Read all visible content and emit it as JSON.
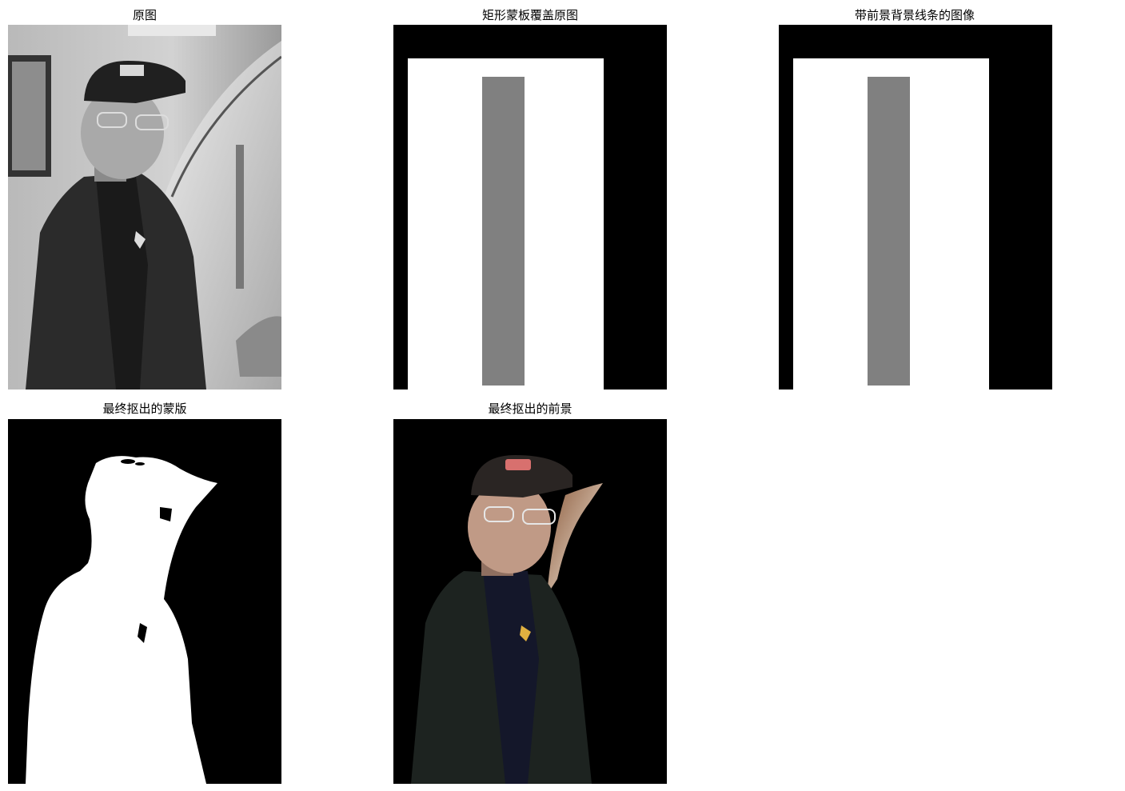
{
  "figure": {
    "panels": [
      {
        "id": "original",
        "title": "原图",
        "content": "grayscale photo of a young man wearing a dark cap and glasses, standing in a bedroom"
      },
      {
        "id": "rect-mask",
        "title": "矩形蒙板覆盖原图"
      },
      {
        "id": "lines-image",
        "title": "带前景背景线条的图像"
      },
      {
        "id": "final-mask",
        "title": "最终抠出的蒙版"
      },
      {
        "id": "final-foreground",
        "title": "最终抠出的前景"
      }
    ]
  },
  "colors": {
    "black": "#000000",
    "white": "#ffffff",
    "gray_strip": "#808080",
    "cap": "#2a2523",
    "skin": "#c09a86",
    "jacket": "#1d2320",
    "shirt": "#14172a",
    "cap_logo": "#d8706e"
  }
}
